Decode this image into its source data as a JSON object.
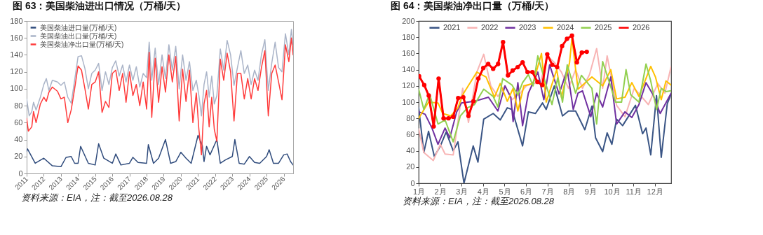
{
  "chart_data": [
    {
      "type": "line",
      "title": "图 63：美国柴油进出口情况（万桶/天）",
      "annotations": [
        "资料来源：EIA，注：截至2026.08.28"
      ],
      "xlim": [
        2011,
        2026.55
      ],
      "xticks": [
        2011,
        2012,
        2013,
        2014,
        2015,
        2016,
        2017,
        2018,
        2019,
        2020,
        2021,
        2022,
        2023,
        2024,
        2025,
        2026
      ],
      "ylim": [
        0,
        180
      ],
      "yticks": [
        0,
        20,
        40,
        60,
        80,
        100,
        120,
        140,
        160,
        180
      ],
      "legend": "top left",
      "series": [
        {
          "name": "美国柴油进口量(万桶/天)",
          "color": "#2f4b7c",
          "x": [
            2011.0,
            2011.05,
            2011.5,
            2012.0,
            2012.5,
            2013.0,
            2013.3,
            2013.6,
            2013.8,
            2014.0,
            2014.15,
            2014.6,
            2015.0,
            2015.2,
            2015.5,
            2016.0,
            2016.2,
            2016.5,
            2017.0,
            2017.2,
            2017.5,
            2018.0,
            2018.1,
            2018.4,
            2018.7,
            2019.1,
            2019.4,
            2019.7,
            2020.0,
            2020.3,
            2020.6,
            2021.0,
            2021.25,
            2021.35,
            2021.5,
            2021.7,
            2022.1,
            2022.3,
            2022.6,
            2023.0,
            2023.15,
            2023.4,
            2023.7,
            2024.0,
            2024.3,
            2024.6,
            2025.0,
            2025.15,
            2025.4,
            2025.7,
            2026.0,
            2026.2,
            2026.4,
            2026.55
          ],
          "values": [
            26,
            29,
            12,
            18,
            9,
            8,
            19,
            20,
            12,
            12,
            32,
            12,
            10,
            35,
            18,
            12,
            23,
            10,
            12,
            19,
            13,
            12,
            34,
            12,
            18,
            40,
            12,
            14,
            25,
            18,
            12,
            45,
            33,
            14,
            32,
            22,
            40,
            12,
            16,
            20,
            40,
            12,
            11,
            20,
            13,
            12,
            20,
            28,
            12,
            12,
            22,
            23,
            14,
            10
          ]
        },
        {
          "name": "美国柴油出口量(万桶/天)",
          "color": "#aab4c8",
          "x": [
            2011.0,
            2011.15,
            2011.3,
            2011.4,
            2011.55,
            2011.8,
            2012.0,
            2012.15,
            2012.3,
            2012.5,
            2012.8,
            2013.0,
            2013.2,
            2013.4,
            2013.6,
            2013.8,
            2014.0,
            2014.2,
            2014.4,
            2014.6,
            2014.8,
            2015.0,
            2015.2,
            2015.4,
            2015.6,
            2015.8,
            2016.0,
            2016.2,
            2016.4,
            2016.6,
            2016.8,
            2017.0,
            2017.2,
            2017.4,
            2017.6,
            2017.8,
            2018.0,
            2018.15,
            2018.3,
            2018.5,
            2018.7,
            2018.9,
            2019.1,
            2019.3,
            2019.5,
            2019.7,
            2019.9,
            2020.1,
            2020.3,
            2020.5,
            2020.7,
            2020.9,
            2021.05,
            2021.2,
            2021.35,
            2021.5,
            2021.65,
            2021.8,
            2021.95,
            2022.1,
            2022.3,
            2022.5,
            2022.7,
            2022.9,
            2023.1,
            2023.3,
            2023.5,
            2023.7,
            2023.9,
            2024.1,
            2024.3,
            2024.5,
            2024.7,
            2024.9,
            2025.1,
            2025.3,
            2025.5,
            2025.7,
            2025.9,
            2026.1,
            2026.3,
            2026.45,
            2026.55
          ],
          "values": [
            88,
            68,
            73,
            84,
            75,
            90,
            105,
            112,
            98,
            110,
            108,
            104,
            108,
            90,
            83,
            110,
            138,
            139,
            124,
            100,
            118,
            122,
            130,
            98,
            120,
            105,
            125,
            133,
            115,
            128,
            108,
            128,
            110,
            126,
            102,
            118,
            113,
            155,
            110,
            148,
            105,
            140,
            112,
            152,
            122,
            150,
            100,
            140,
            110,
            132,
            98,
            110,
            92,
            68,
            105,
            120,
            90,
            115,
            82,
            92,
            147,
            122,
            157,
            140,
            104,
            125,
            145,
            118,
            128,
            105,
            122,
            110,
            140,
            158,
            98,
            130,
            155,
            125,
            120,
            165,
            140,
            170,
            152
          ]
        },
        {
          "name": "美国柴油净出口量(万桶/天)",
          "color": "#ff3b3b",
          "x": [
            2011.0,
            2011.1,
            2011.3,
            2011.4,
            2011.55,
            2011.8,
            2012.0,
            2012.15,
            2012.3,
            2012.5,
            2012.8,
            2013.0,
            2013.2,
            2013.4,
            2013.6,
            2013.8,
            2014.0,
            2014.2,
            2014.4,
            2014.6,
            2014.8,
            2015.0,
            2015.2,
            2015.4,
            2015.6,
            2015.8,
            2016.0,
            2016.2,
            2016.4,
            2016.6,
            2016.8,
            2017.0,
            2017.2,
            2017.4,
            2017.6,
            2017.8,
            2018.0,
            2018.15,
            2018.3,
            2018.5,
            2018.7,
            2018.9,
            2019.1,
            2019.3,
            2019.5,
            2019.7,
            2019.9,
            2020.1,
            2020.3,
            2020.5,
            2020.7,
            2020.9,
            2021.05,
            2021.2,
            2021.35,
            2021.5,
            2021.65,
            2021.8,
            2021.95,
            2022.1,
            2022.3,
            2022.5,
            2022.7,
            2022.9,
            2023.1,
            2023.3,
            2023.5,
            2023.7,
            2023.9,
            2024.1,
            2024.3,
            2024.5,
            2024.7,
            2024.9,
            2025.1,
            2025.3,
            2025.5,
            2025.7,
            2025.9,
            2026.1,
            2026.3,
            2026.45,
            2026.55
          ],
          "values": [
            65,
            50,
            55,
            73,
            60,
            82,
            90,
            85,
            96,
            102,
            97,
            88,
            90,
            60,
            75,
            100,
            127,
            122,
            100,
            76,
            105,
            108,
            120,
            72,
            85,
            78,
            118,
            122,
            98,
            118,
            84,
            120,
            92,
            105,
            80,
            108,
            76,
            143,
            66,
            136,
            84,
            126,
            96,
            140,
            108,
            138,
            62,
            123,
            85,
            122,
            60,
            95,
            52,
            22,
            82,
            98,
            55,
            90,
            52,
            38,
            135,
            110,
            142,
            120,
            62,
            118,
            118,
            88,
            112,
            88,
            112,
            98,
            125,
            145,
            68,
            118,
            128,
            108,
            87,
            152,
            132,
            160,
            140
          ]
        }
      ]
    },
    {
      "type": "line",
      "title": "图 64：美国柴油净出口量（万桶/天）",
      "annotations": [
        "资料来源：EIA，注：截至2026.08.28"
      ],
      "xlim": [
        1,
        12.76
      ],
      "xticks": [
        {
          "value": 1,
          "label": "1月"
        },
        {
          "value": 2,
          "label": "2月"
        },
        {
          "value": 3,
          "label": "3月"
        },
        {
          "value": 4,
          "label": "4月"
        },
        {
          "value": 5,
          "label": "5月"
        },
        {
          "value": 6,
          "label": "6月"
        },
        {
          "value": 7,
          "label": "7月"
        },
        {
          "value": 8,
          "label": "8月"
        },
        {
          "value": 9,
          "label": "9月"
        },
        {
          "value": 10,
          "label": "10月"
        },
        {
          "value": 11,
          "label": "11月"
        },
        {
          "value": 12,
          "label": "12月"
        }
      ],
      "ylim": [
        0,
        200
      ],
      "yticks": [
        0,
        20,
        40,
        60,
        80,
        100,
        120,
        140,
        160,
        180,
        200
      ],
      "legend": "top",
      "series": [
        {
          "name": "2021",
          "color": "#3a5585",
          "x": [
            1.0,
            1.24,
            1.46,
            1.73,
            2.01,
            2.28,
            2.61,
            2.83,
            3.11,
            3.54,
            3.76,
            4.03,
            4.47,
            4.8,
            5.13,
            5.35,
            5.84,
            6.11,
            6.44,
            6.77,
            6.94,
            7.32,
            7.7,
            7.98,
            8.31,
            8.74,
            9.07,
            9.24,
            9.57,
            9.78,
            10.0,
            10.22,
            10.5,
            11.1,
            11.43,
            11.59,
            11.81,
            12.08,
            12.3,
            12.58,
            12.76
          ],
          "values": [
            93,
            38,
            64,
            33,
            46,
            63,
            40,
            51,
            0,
            46,
            26,
            79,
            86,
            78,
            93,
            91,
            46,
            88,
            86,
            99,
            91,
            120,
            83,
            89,
            89,
            66,
            95,
            56,
            39,
            62,
            48,
            79,
            71,
            96,
            61,
            68,
            35,
            108,
            32,
            98,
            110
          ]
        },
        {
          "name": "2022",
          "color": "#f8b4b4",
          "x": [
            1.0,
            1.24,
            1.68,
            2.01,
            2.23,
            2.61,
            3.05,
            3.32,
            3.71,
            4.03,
            4.36,
            4.69,
            5.02,
            5.35,
            5.73,
            6.01,
            6.33,
            6.66,
            6.99,
            7.32,
            7.65,
            7.98,
            8.31,
            8.63,
            8.96,
            9.29,
            9.57,
            9.78,
            10.22,
            10.61,
            11.04,
            11.7,
            12.14,
            12.47,
            12.76
          ],
          "values": [
            67,
            38,
            28,
            48,
            36,
            35,
            117,
            75,
            137,
            159,
            120,
            107,
            120,
            103,
            111,
            120,
            123,
            123,
            157,
            149,
            137,
            117,
            140,
            117,
            134,
            166,
            117,
            157,
            96,
            82,
            117,
            97,
            123,
            111,
            144
          ]
        },
        {
          "name": "2023",
          "color": "#7030a0",
          "x": [
            1.0,
            1.3,
            1.62,
            1.9,
            2.23,
            2.45,
            2.77,
            2.99,
            3.6,
            4.25,
            4.69,
            5.02,
            5.29,
            5.4,
            5.62,
            5.84,
            6.11,
            6.55,
            6.83,
            7.1,
            7.54,
            7.92,
            8.2,
            8.42,
            8.63,
            9.02,
            9.29,
            9.57,
            9.95,
            10.22,
            10.61,
            10.93,
            11.26,
            11.59,
            11.92,
            12.25,
            12.76
          ],
          "values": [
            88,
            85,
            68,
            48,
            68,
            56,
            88,
            99,
            101,
            106,
            89,
            120,
            106,
            76,
            124,
            71,
            111,
            137,
            103,
            146,
            110,
            140,
            91,
            111,
            114,
            82,
            111,
            94,
            131,
            73,
            88,
            81,
            97,
            124,
            109,
            86,
            111
          ]
        },
        {
          "name": "2024",
          "color": "#ffc000",
          "x": [
            1.0,
            1.46,
            1.9,
            2.12,
            2.5,
            2.83,
            3.05,
            3.71,
            4.14,
            4.53,
            4.8,
            5.13,
            5.4,
            5.62,
            5.9,
            6.33,
            6.72,
            6.94,
            7.43,
            7.65,
            8.03,
            8.14,
            8.42,
            9.07,
            9.57,
            9.95,
            10.22,
            10.61,
            10.93,
            11.26,
            11.81,
            12.03,
            12.3,
            12.52,
            12.76
          ],
          "values": [
            80,
            100,
            99,
            86,
            83,
            93,
            109,
            137,
            131,
            106,
            123,
            101,
            117,
            89,
            120,
            123,
            160,
            100,
            140,
            106,
            149,
            179,
            116,
            131,
            120,
            140,
            104,
            106,
            124,
            107,
            144,
            131,
            103,
            126,
            121
          ]
        },
        {
          "name": "2025",
          "color": "#92d050",
          "x": [
            1.0,
            1.24,
            1.51,
            1.9,
            2.23,
            2.61,
            2.94,
            3.27,
            3.6,
            4.03,
            4.47,
            4.69,
            4.91,
            5.35,
            5.62,
            5.84,
            6.11,
            6.33,
            6.55,
            6.88,
            7.21,
            7.48,
            7.7,
            7.92,
            8.31,
            8.58,
            9.07,
            9.29,
            9.57,
            9.9,
            10.17,
            10.45,
            10.66,
            10.88,
            11.26,
            11.59,
            11.81,
            12.08,
            12.3,
            12.52,
            12.76
          ],
          "values": [
            116,
            91,
            110,
            73,
            78,
            51,
            83,
            93,
            97,
            116,
            107,
            94,
            129,
            121,
            109,
            124,
            134,
            120,
            157,
            126,
            97,
            130,
            100,
            146,
            111,
            133,
            117,
            73,
            150,
            123,
            100,
            100,
            140,
            109,
            100,
            147,
            126,
            91,
            117,
            113,
            114
          ]
        },
        {
          "name": "2026",
          "color": "#ff0000",
          "marker": "circle",
          "x": [
            1.02,
            1.26,
            1.47,
            1.7,
            1.93,
            2.16,
            2.39,
            2.61,
            2.84,
            3.08,
            3.32,
            3.55,
            3.78,
            4.01,
            4.24,
            4.47,
            4.7,
            4.93,
            5.16,
            5.38,
            5.61,
            5.84,
            6.07,
            6.3,
            6.53,
            6.76,
            6.99,
            7.22,
            7.45,
            7.68,
            7.91,
            8.14,
            8.37,
            8.6,
            8.83
          ],
          "values": [
            132,
            121,
            108,
            70,
            129,
            80,
            80,
            82,
            105,
            106,
            83,
            101,
            129,
            142,
            147,
            141,
            147,
            174,
            133,
            139,
            143,
            149,
            137,
            137,
            125,
            121,
            159,
            146,
            143,
            169,
            178,
            182,
            149,
            161,
            162
          ]
        }
      ]
    }
  ]
}
